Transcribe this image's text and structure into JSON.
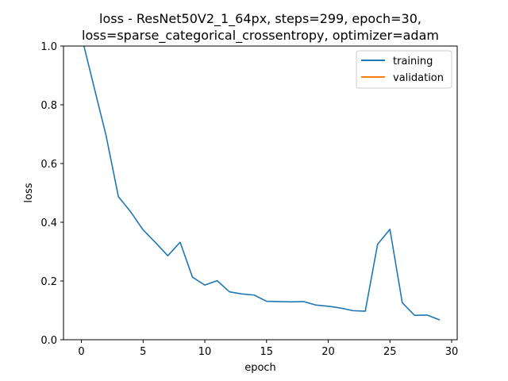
{
  "chart_data": {
    "type": "line",
    "title_lines": [
      "loss - ResNet50V2_1_64px, steps=299, epoch=30,",
      "loss=sparse_categorical_crossentropy, optimizer=adam"
    ],
    "xlabel": "epoch",
    "ylabel": "loss",
    "xlim": [
      -1.45,
      30.45
    ],
    "ylim": [
      0,
      1.0
    ],
    "xticks": [
      0,
      5,
      10,
      15,
      20,
      25,
      30
    ],
    "yticks": [
      0.0,
      0.2,
      0.4,
      0.6,
      0.8,
      1.0
    ],
    "xtick_labels": [
      "0",
      "5",
      "10",
      "15",
      "20",
      "25",
      "30"
    ],
    "ytick_labels": [
      "0.0",
      "0.2",
      "0.4",
      "0.6",
      "0.8",
      "1.0"
    ],
    "grid": false,
    "legend_position": "top-right",
    "series": [
      {
        "name": "training",
        "color": "#1f77b4",
        "x": [
          0,
          1,
          2,
          3,
          4,
          5,
          6,
          7,
          8,
          9,
          10,
          11,
          12,
          13,
          14,
          15,
          16,
          17,
          18,
          19,
          20,
          21,
          22,
          23,
          24,
          25,
          26,
          27,
          28,
          29
        ],
        "values": [
          1.035,
          0.865,
          0.695,
          0.487,
          0.435,
          0.374,
          0.331,
          0.286,
          0.332,
          0.213,
          0.186,
          0.201,
          0.163,
          0.156,
          0.152,
          0.131,
          0.13,
          0.129,
          0.13,
          0.118,
          0.114,
          0.108,
          0.099,
          0.097,
          0.325,
          0.376,
          0.126,
          0.083,
          0.084,
          0.068
        ]
      },
      {
        "name": "validation",
        "color": "#ff7f0e",
        "x": [],
        "values": []
      }
    ]
  }
}
